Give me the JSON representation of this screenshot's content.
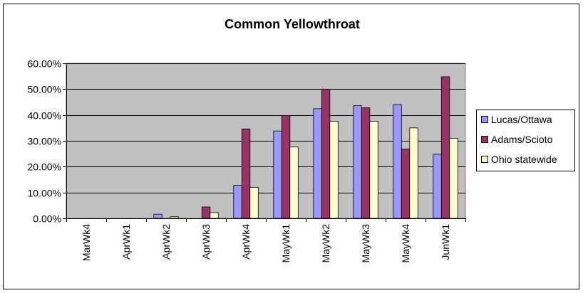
{
  "chart_data": {
    "type": "bar",
    "title": "Common Yellowthroat",
    "xlabel": "",
    "ylabel": "",
    "ylim": [
      0,
      0.6
    ],
    "yticks": [
      "0.00%",
      "10.00%",
      "20.00%",
      "30.00%",
      "40.00%",
      "50.00%",
      "60.00%"
    ],
    "grid": true,
    "legend_position": "right",
    "categories": [
      "MarWk4",
      "AprWk1",
      "AprWk2",
      "AprWk3",
      "AprWk4",
      "MayWk1",
      "MayWk2",
      "MayWk3",
      "MayWk4",
      "JunWk1"
    ],
    "series": [
      {
        "name": "Lucas/Ottawa",
        "color": "#9999ff",
        "values": [
          0,
          0,
          0.016,
          0,
          0.128,
          0.338,
          0.424,
          0.436,
          0.44,
          0.248
        ]
      },
      {
        "name": "Adams/Scioto",
        "color": "#993366",
        "values": [
          0,
          0,
          0,
          0.044,
          0.346,
          0.398,
          0.5,
          0.428,
          0.268,
          0.548
        ]
      },
      {
        "name": "Ohio statewide",
        "color": "#ffffcc",
        "values": [
          0,
          0,
          0.006,
          0.022,
          0.12,
          0.276,
          0.376,
          0.376,
          0.35,
          0.31
        ]
      }
    ],
    "plot_background": "#c0c0c0"
  }
}
